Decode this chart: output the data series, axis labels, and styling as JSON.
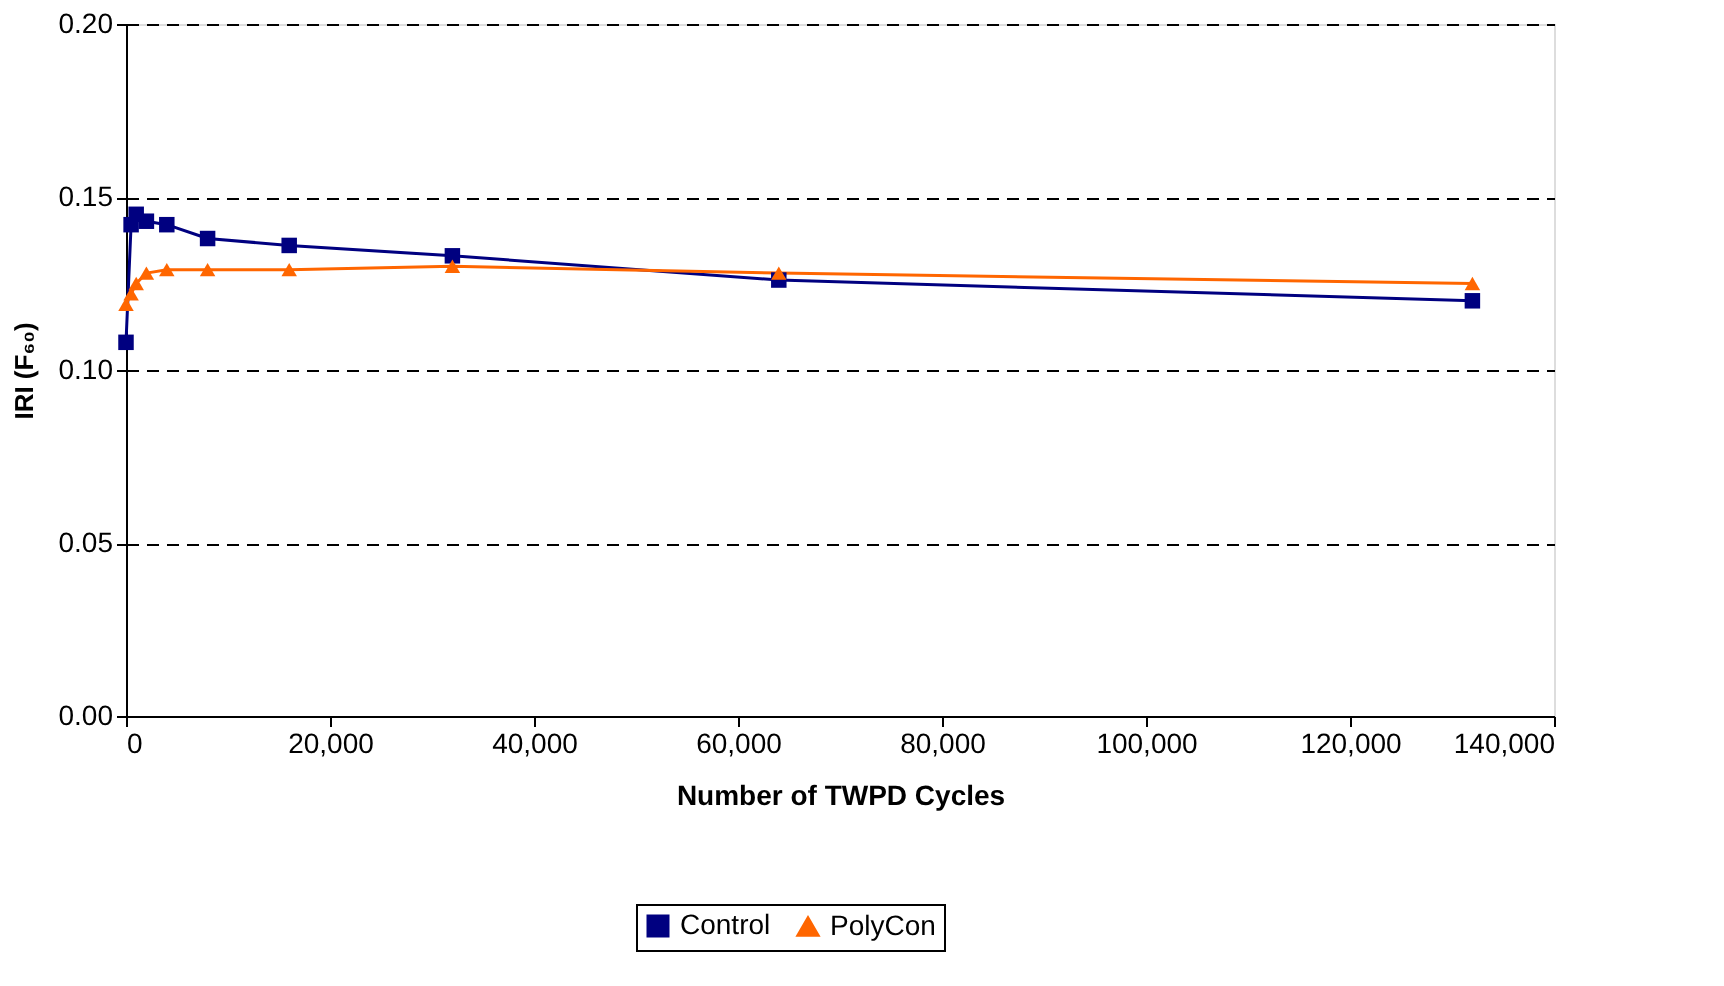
{
  "chart_data": {
    "type": "line",
    "xlabel": "Number of TWPD Cycles",
    "ylabel": "IRI (F₆₀)",
    "x": [
      0,
      500,
      1000,
      2000,
      4000,
      8000,
      16000,
      32000,
      64000,
      132000
    ],
    "series": [
      {
        "name": "Control",
        "color": "#000080",
        "marker": "square",
        "values": [
          0.108,
          0.142,
          0.145,
          0.143,
          0.142,
          0.138,
          0.136,
          0.133,
          0.126,
          0.12
        ]
      },
      {
        "name": "PolyCon",
        "color": "#ff6600",
        "marker": "triangle",
        "values": [
          0.119,
          0.122,
          0.125,
          0.128,
          0.129,
          0.129,
          0.129,
          0.13,
          0.128,
          0.125
        ]
      }
    ],
    "xlim": [
      0,
      140000
    ],
    "xticks": [
      {
        "value": 0,
        "label": "0"
      },
      {
        "value": 20000,
        "label": "20,000"
      },
      {
        "value": 40000,
        "label": "40,000"
      },
      {
        "value": 60000,
        "label": "60,000"
      },
      {
        "value": 80000,
        "label": "80,000"
      },
      {
        "value": 100000,
        "label": "100,000"
      },
      {
        "value": 120000,
        "label": "120,000"
      },
      {
        "value": 140000,
        "label": "140,000"
      }
    ],
    "ylim": [
      0,
      0.2
    ],
    "yticks": [
      {
        "value": 0,
        "label": "0.00"
      },
      {
        "value": 0.05,
        "label": "0.05"
      },
      {
        "value": 0.1,
        "label": "0.10"
      },
      {
        "value": 0.15,
        "label": "0.15"
      },
      {
        "value": 0.2,
        "label": "0.20"
      }
    ],
    "grid": "y",
    "legend": "bottom",
    "line_style": "solid"
  }
}
